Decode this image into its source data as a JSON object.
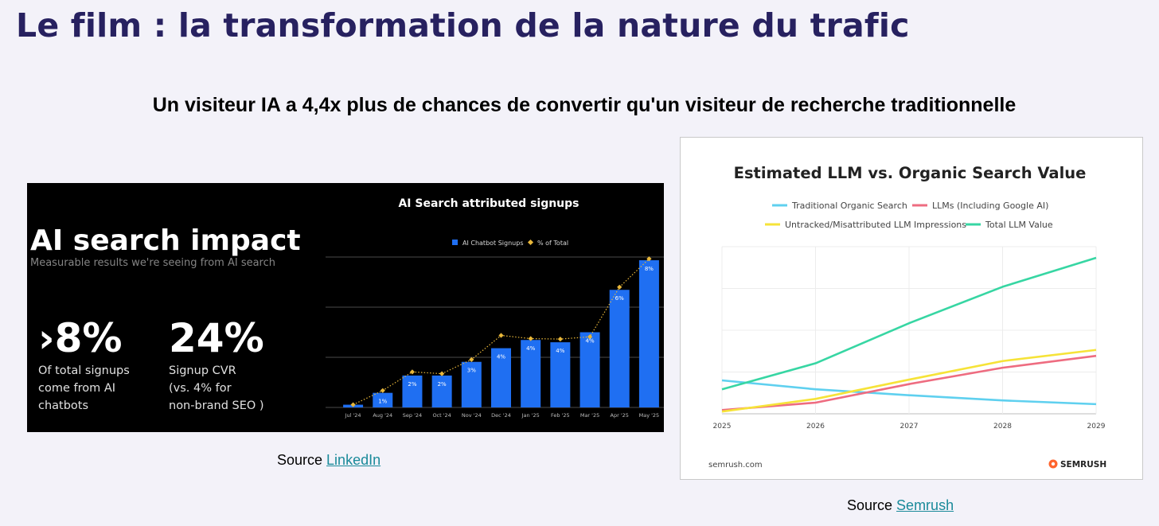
{
  "page": {
    "title": "Le film : la transformation de la nature du trafic",
    "subtitle": "Un visiteur IA a 4,4x plus de chances de convertir qu'un visiteur de recherche traditionnelle"
  },
  "left_panel": {
    "heading": "AI search impact",
    "subheading": "Measurable results we're seeing from AI search",
    "stat1": {
      "value": "›8%",
      "lines": [
        "Of total signups",
        "come from AI",
        "chatbots"
      ]
    },
    "stat2": {
      "value": "24%",
      "lines": [
        "Signup CVR",
        "(vs. 4% for",
        "non-brand SEO )"
      ]
    }
  },
  "right_panel": {
    "footer_site": "semrush.com",
    "footer_brand": "SEMRUSH"
  },
  "sources": {
    "left": {
      "prefix": "Source ",
      "link": "LinkedIn"
    },
    "right": {
      "prefix": "Source ",
      "link": "Semrush"
    }
  },
  "chart_data": [
    {
      "type": "bar",
      "title": "AI Search attributed signups",
      "legend": [
        "AI Chatbot Signups",
        "% of Total"
      ],
      "legend_placement": "top",
      "categories": [
        "Jul '24",
        "Aug '24",
        "Sep '24",
        "Oct '24",
        "Nov '24",
        "Dec '24",
        "Jan '25",
        "Feb '25",
        "Mar '25",
        "Apr '25",
        "May '25"
      ],
      "series": [
        {
          "name": "AI Chatbot Signups",
          "values": [
            0.6,
            3.2,
            7.0,
            7.0,
            10.0,
            13.0,
            14.8,
            14.3,
            16.5,
            25.8,
            32.3
          ],
          "labels": [
            "",
            "1%",
            "2%",
            "2%",
            "3%",
            "4%",
            "4%",
            "4%",
            "4%",
            "6%",
            "8%"
          ]
        },
        {
          "name": "% of Total",
          "values": [
            0.6,
            3.7,
            7.8,
            7.4,
            10.5,
            15.8,
            15.1,
            15.0,
            15.5,
            26.4,
            32.6
          ]
        }
      ],
      "ylim": [
        0,
        33
      ],
      "grid": true,
      "colors": {
        "bar": "#1f6ff2",
        "line": "#e8b73a"
      }
    },
    {
      "type": "line",
      "title": "Estimated LLM vs. Organic Search Value",
      "x": [
        2025,
        2026,
        2027,
        2028,
        2029
      ],
      "series": [
        {
          "name": "Traditional Organic Search",
          "color": "#5fd0ef",
          "values": [
            0.9,
            0.66,
            0.5,
            0.36,
            0.26
          ]
        },
        {
          "name": "LLMs (Including Google AI)",
          "color": "#ee6c80",
          "values": [
            0.1,
            0.3,
            0.8,
            1.24,
            1.56
          ]
        },
        {
          "name": "Untracked/Misattributed LLM Impressions",
          "color": "#f6e338",
          "values": [
            0.06,
            0.4,
            0.92,
            1.42,
            1.72
          ]
        },
        {
          "name": "Total LLM Value",
          "color": "#37d6a3",
          "values": [
            0.66,
            1.36,
            2.44,
            3.42,
            4.2
          ]
        }
      ],
      "ylim": [
        0,
        4.5
      ],
      "y_tick_labels_shown": false,
      "grid": true,
      "legend_placement": "top"
    }
  ]
}
